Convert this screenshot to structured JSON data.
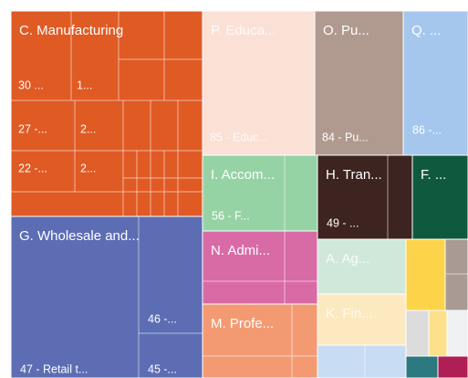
{
  "chart_data": {
    "type": "treemap",
    "tiles": [
      {
        "name": "C. Manufacturing",
        "color": "#e05a24",
        "labels": [
          "30 ...",
          "1...",
          "27 -...",
          "2...",
          "22 -...",
          "2..."
        ]
      },
      {
        "name": "P. Educa...",
        "color": "#fbe0d6",
        "labels": [
          "85 - Educ..."
        ]
      },
      {
        "name": "O. Pu...",
        "color": "#b09a8f",
        "labels": [
          "84 - Pu..."
        ]
      },
      {
        "name": "Q. ...",
        "color": "#a5c7ee",
        "labels": [
          "86 -..."
        ]
      },
      {
        "name": "I. Accom...",
        "color": "#96d3a4",
        "labels": [
          "56 - F..."
        ]
      },
      {
        "name": "H. Tran...",
        "color": "#3d2420",
        "labels": [
          "49 - ..."
        ]
      },
      {
        "name": "F. ...",
        "color": "#0f5a3e",
        "labels": []
      },
      {
        "name": "G. Wholesale and...",
        "color": "#5c6db3",
        "labels": [
          "47 - Retail t...",
          "46 -...",
          "45 -..."
        ]
      },
      {
        "name": "N. Admi...",
        "color": "#d86aa6",
        "labels": []
      },
      {
        "name": "M. Profe...",
        "color": "#f49a73",
        "labels": []
      },
      {
        "name": "A. Ag...",
        "color": "#cfe8da",
        "labels": []
      },
      {
        "name": "K. Fin...",
        "color": "#fde9c0",
        "labels": []
      },
      {
        "color": "#c8dcf3"
      },
      {
        "color": "#fdd34a"
      },
      {
        "color": "#a99a93"
      },
      {
        "color": "#dcdcdc"
      },
      {
        "color": "#fde08a"
      },
      {
        "color": "#eef0f2"
      },
      {
        "color": "#2c7a7f"
      },
      {
        "color": "#b01e56"
      }
    ]
  }
}
